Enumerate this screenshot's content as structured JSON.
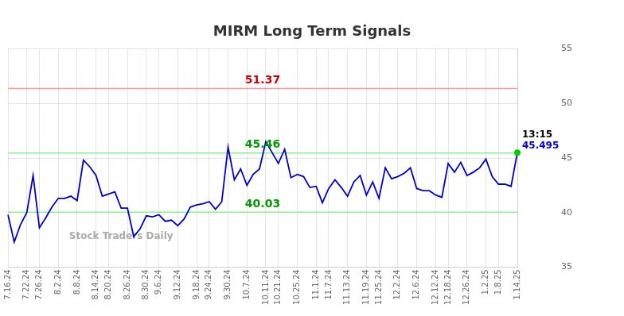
{
  "chart_data": {
    "type": "line",
    "title": "MIRM Long Term Signals",
    "categories": [
      "7.16.24",
      null,
      null,
      "7.22.24",
      null,
      "7.26.24",
      null,
      null,
      "8.2.24",
      null,
      null,
      "8.8.24",
      null,
      null,
      "8.14.24",
      null,
      "8.20.24",
      null,
      null,
      "8.26.24",
      null,
      null,
      "8.30.24",
      null,
      "9.6.24",
      null,
      null,
      "9.12.24",
      null,
      null,
      "9.18.24",
      null,
      "9.24.24",
      null,
      null,
      "9.30.24",
      null,
      null,
      "10.7.24",
      null,
      null,
      "10.11.24",
      null,
      "10.21.24",
      null,
      null,
      "10.25.24",
      null,
      null,
      "11.1.24",
      null,
      "11.7.24",
      null,
      null,
      "11.13.24",
      null,
      null,
      "11.19.24",
      null,
      "11.25.24",
      null,
      null,
      "12.2.24",
      null,
      null,
      "12.6.24",
      null,
      null,
      "12.12.24",
      null,
      "12.18.24",
      null,
      null,
      "12.26.24",
      null,
      null,
      "1.2.25",
      null,
      "1.8.25",
      null,
      null,
      "1.14.25"
    ],
    "series": [
      {
        "color": "#0000cc",
        "values": [
          39.8,
          37.3,
          38.9,
          40.0,
          43.4,
          38.6,
          39.5,
          40.5,
          41.3,
          41.3,
          41.5,
          41.1,
          44.8,
          44.2,
          43.4,
          41.5,
          41.7,
          41.9,
          40.4,
          40.4,
          37.8,
          38.5,
          39.7,
          39.6,
          39.8,
          39.2,
          39.3,
          38.8,
          39.4,
          40.5,
          40.7,
          40.8,
          41.0,
          40.3,
          41.0,
          46.0,
          43.0,
          44.0,
          42.5,
          43.5,
          44.0,
          46.5,
          45.5,
          44.5,
          45.8,
          43.2,
          43.5,
          43.3,
          42.3,
          42.4,
          40.9,
          42.2,
          43.0,
          42.3,
          41.5,
          42.8,
          43.4,
          41.6,
          42.8,
          41.3,
          44.1,
          43.1,
          43.3,
          43.6,
          44.1,
          42.2,
          42.0,
          42.0,
          41.6,
          41.4,
          44.5,
          43.7,
          44.6,
          43.4,
          43.7,
          44.1,
          44.9,
          43.3,
          42.6,
          42.6,
          42.4,
          45.495
        ]
      }
    ],
    "annotations": [
      {
        "type": "hline",
        "value": 51.37,
        "label": "51.37",
        "color": "#ff9999",
        "label_color": "#cc0000"
      },
      {
        "type": "hline",
        "value": 45.46,
        "label": "45.46",
        "color": "#90ee90",
        "label_color": "#009900"
      },
      {
        "type": "hline",
        "value": 40.03,
        "label": "40.03",
        "color": "#90ee90",
        "label_color": "#009900"
      },
      {
        "type": "end_point",
        "color": "#00cc00"
      },
      {
        "type": "end_label",
        "text": "13:15",
        "color": "#000000"
      },
      {
        "type": "end_label",
        "text": "45.495",
        "color": "#0000cc"
      },
      {
        "type": "watermark",
        "text": "Stock Traders Daily",
        "color": "#aaaaaa"
      }
    ],
    "ylim": [
      35,
      55
    ],
    "yticks": [
      35,
      40,
      45,
      50,
      55
    ],
    "grid": true
  }
}
